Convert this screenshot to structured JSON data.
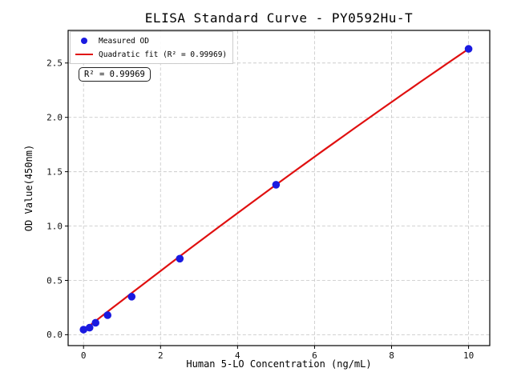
{
  "chart_data": {
    "type": "scatter",
    "title": "ELISA Standard Curve - PY0592Hu-T",
    "xlabel": "Human 5-LO Concentration (ng/mL)",
    "ylabel": "OD Value(450nm)",
    "xlim": [
      -0.4,
      10.55
    ],
    "ylim": [
      -0.1,
      2.8
    ],
    "xticks": [
      0,
      2,
      4,
      6,
      8,
      10
    ],
    "xtick_labels": [
      "0",
      "2",
      "4",
      "6",
      "8",
      "10"
    ],
    "yticks": [
      0.0,
      0.5,
      1.0,
      1.5,
      2.0,
      2.5
    ],
    "ytick_labels": [
      "0.0",
      "0.5",
      "1.0",
      "1.5",
      "2.0",
      "2.5"
    ],
    "grid": true,
    "colors": {
      "marker": "#1a1ae0",
      "fit_line": "#e01010"
    },
    "series": [
      {
        "name": "Measured OD",
        "type": "scatter",
        "color": "#1a1ae0",
        "x": [
          0,
          0.156,
          0.312,
          0.625,
          1.25,
          2.5,
          5,
          10
        ],
        "y": [
          0.047,
          0.065,
          0.11,
          0.18,
          0.35,
          0.7,
          1.38,
          2.63
        ]
      },
      {
        "name": "Quadratic fit",
        "type": "line",
        "color": "#e01010",
        "fit": {
          "a": -0.0018,
          "b": 0.277,
          "c": 0.04
        },
        "x_range": [
          0,
          10
        ]
      }
    ],
    "legend": {
      "position": "upper-left",
      "items": [
        {
          "label": "Measured OD",
          "type": "marker",
          "color": "#1a1ae0"
        },
        {
          "label": "Quadratic fit (R² = 0.99969)",
          "type": "line",
          "color": "#e01010"
        }
      ]
    },
    "annotation": {
      "text": "R² = 0.99969"
    }
  }
}
